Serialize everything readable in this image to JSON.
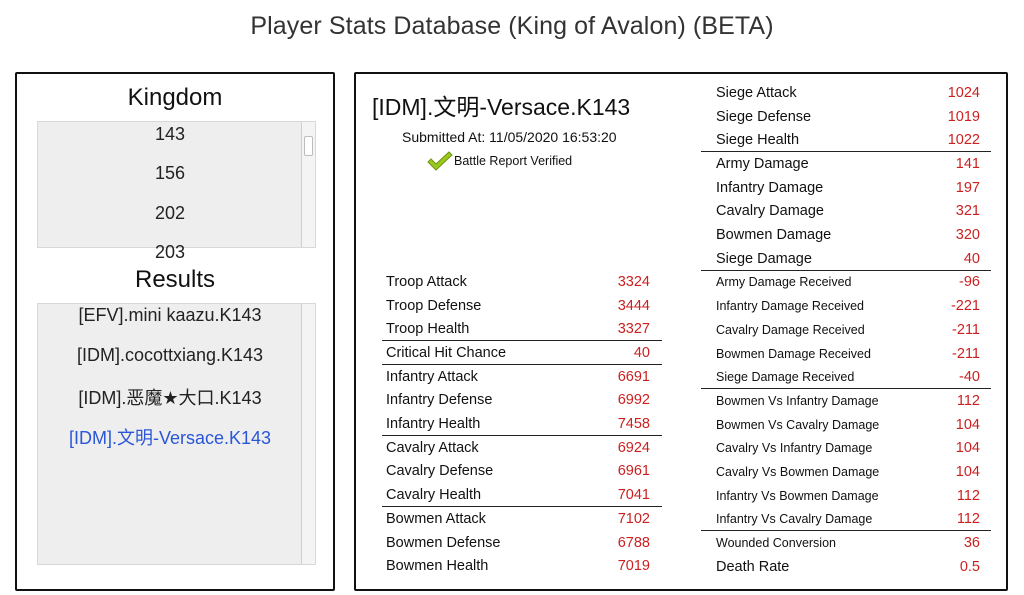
{
  "page": {
    "title": "Player Stats Database (King of Avalon) (BETA)"
  },
  "kingdom": {
    "title": "Kingdom",
    "items": [
      "143",
      "156",
      "202",
      "203"
    ]
  },
  "results": {
    "title": "Results",
    "items": [
      "[EFV].mini kaazu.K143",
      "[IDM].cocottxiang.K143",
      "[IDM].恶魔★大口.K143",
      "[IDM].文明-Versace.K143"
    ],
    "selected_index": 3
  },
  "player": {
    "name": "[IDM].文明-Versace.K143",
    "submitted": "Submitted At: 11/05/2020 16:53:20",
    "verified": "Battle Report Verified"
  },
  "stats_left": [
    {
      "label": "Troop Attack",
      "value": "3324"
    },
    {
      "label": "Troop Defense",
      "value": "3444"
    },
    {
      "label": "Troop Health",
      "value": "3327"
    },
    {
      "label": "Critical Hit Chance",
      "value": "40"
    },
    {
      "label": "Infantry Attack",
      "value": "6691"
    },
    {
      "label": "Infantry Defense",
      "value": "6992"
    },
    {
      "label": "Infantry Health",
      "value": "7458"
    },
    {
      "label": "Cavalry Attack",
      "value": "6924"
    },
    {
      "label": "Cavalry Defense",
      "value": "6961"
    },
    {
      "label": "Cavalry Health",
      "value": "7041"
    },
    {
      "label": "Bowmen Attack",
      "value": "7102"
    },
    {
      "label": "Bowmen Defense",
      "value": "6788"
    },
    {
      "label": "Bowmen Health",
      "value": "7019"
    }
  ],
  "stats_right": [
    {
      "label": "Siege Attack",
      "value": "1024"
    },
    {
      "label": "Siege Defense",
      "value": "1019"
    },
    {
      "label": "Siege Health",
      "value": "1022"
    },
    {
      "label": "Army Damage",
      "value": "141"
    },
    {
      "label": "Infantry Damage",
      "value": "197"
    },
    {
      "label": "Cavalry Damage",
      "value": "321"
    },
    {
      "label": "Bowmen Damage",
      "value": "320"
    },
    {
      "label": "Siege Damage",
      "value": "40"
    },
    {
      "label": "Army Damage Received",
      "value": "-96"
    },
    {
      "label": "Infantry Damage Received",
      "value": "-221"
    },
    {
      "label": "Cavalry Damage Received",
      "value": "-211"
    },
    {
      "label": "Bowmen Damage Received",
      "value": "-211"
    },
    {
      "label": "Siege Damage Received",
      "value": "-40"
    },
    {
      "label": "Bowmen Vs Infantry Damage",
      "value": "112"
    },
    {
      "label": "Bowmen Vs Cavalry Damage",
      "value": "104"
    },
    {
      "label": "Cavalry Vs Infantry Damage",
      "value": "104"
    },
    {
      "label": "Cavalry Vs Bowmen Damage",
      "value": "104"
    },
    {
      "label": "Infantry Vs Bowmen Damage",
      "value": "112"
    },
    {
      "label": "Infantry Vs Cavalry Damage",
      "value": "112"
    },
    {
      "label": "Wounded Conversion",
      "value": "36"
    },
    {
      "label": "Death Rate",
      "value": "0.5"
    }
  ],
  "colors": {
    "value": "#cc1f1f",
    "selected": "#2a56d8",
    "check": "#9ac81e"
  },
  "icons": {
    "verified": "checkmark-icon"
  }
}
